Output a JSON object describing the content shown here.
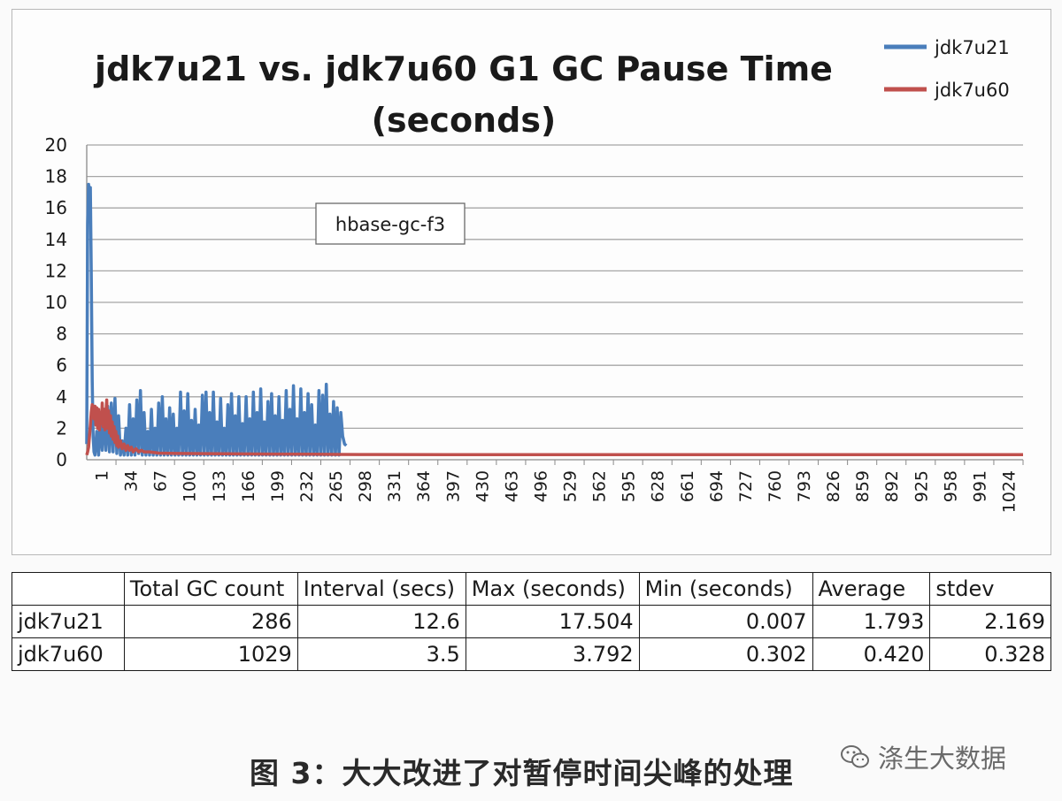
{
  "chart_data": {
    "type": "line",
    "title": "jdk7u21 vs. jdk7u60 G1 GC Pause Time (seconds)",
    "title_lines": [
      "jdk7u21 vs. jdk7u60 G1 GC Pause Time",
      "(seconds)"
    ],
    "annotation": "hbase-gc-f3",
    "ylim": [
      0,
      20
    ],
    "y_ticks": [
      "0",
      "2",
      "4",
      "6",
      "8",
      "10",
      "12",
      "14",
      "16",
      "18",
      "20"
    ],
    "x_tick_labels": [
      "1",
      "34",
      "67",
      "100",
      "133",
      "166",
      "199",
      "232",
      "265",
      "298",
      "331",
      "364",
      "397",
      "430",
      "463",
      "496",
      "529",
      "562",
      "595",
      "628",
      "661",
      "694",
      "727",
      "760",
      "793",
      "826",
      "859",
      "892",
      "925",
      "958",
      "991",
      "1024"
    ],
    "xlim": [
      1,
      1029
    ],
    "legend_position": "top-right",
    "grid": true,
    "series": [
      {
        "name": "jdk7u21",
        "color": "#4a7ebb",
        "points": [
          [
            1,
            1.0
          ],
          [
            2,
            15
          ],
          [
            3,
            17.5
          ],
          [
            4,
            16.5
          ],
          [
            5,
            17.3
          ],
          [
            6,
            12
          ],
          [
            7,
            5
          ],
          [
            8,
            1.5
          ],
          [
            9,
            0.5
          ],
          [
            10,
            0.3
          ],
          [
            12,
            1.8
          ],
          [
            14,
            0.3
          ],
          [
            16,
            2.5
          ],
          [
            18,
            0.6
          ],
          [
            20,
            3.2
          ],
          [
            22,
            0.6
          ],
          [
            24,
            3.4
          ],
          [
            26,
            0.5
          ],
          [
            28,
            3.6
          ],
          [
            30,
            0.5
          ],
          [
            32,
            3.9
          ],
          [
            34,
            0.4
          ],
          [
            36,
            2.8
          ],
          [
            38,
            0.3
          ],
          [
            40,
            1.2
          ],
          [
            42,
            0.3
          ],
          [
            44,
            2.0
          ],
          [
            46,
            0.3
          ],
          [
            48,
            3.5
          ],
          [
            50,
            0.3
          ],
          [
            52,
            2.6
          ],
          [
            54,
            0.3
          ],
          [
            56,
            3.8
          ],
          [
            58,
            0.4
          ],
          [
            60,
            4.4
          ],
          [
            62,
            0.3
          ],
          [
            64,
            3.0
          ],
          [
            66,
            0.3
          ],
          [
            68,
            1.8
          ],
          [
            70,
            0.3
          ],
          [
            72,
            3.2
          ],
          [
            74,
            0.3
          ],
          [
            76,
            2.0
          ],
          [
            78,
            0.3
          ],
          [
            80,
            3.6
          ],
          [
            82,
            0.3
          ],
          [
            84,
            4.0
          ],
          [
            86,
            0.3
          ],
          [
            88,
            2.6
          ],
          [
            90,
            0.3
          ],
          [
            92,
            3.3
          ],
          [
            94,
            0.3
          ],
          [
            96,
            2.9
          ],
          [
            98,
            0.3
          ],
          [
            100,
            2.0
          ],
          [
            102,
            0.3
          ],
          [
            104,
            4.3
          ],
          [
            106,
            0.3
          ],
          [
            108,
            3.1
          ],
          [
            110,
            0.3
          ],
          [
            112,
            4.2
          ],
          [
            114,
            0.3
          ],
          [
            116,
            2.5
          ],
          [
            118,
            0.3
          ],
          [
            120,
            3.2
          ],
          [
            122,
            0.3
          ],
          [
            124,
            2.2
          ],
          [
            126,
            0.3
          ],
          [
            128,
            4.1
          ],
          [
            130,
            0.3
          ],
          [
            132,
            4.3
          ],
          [
            134,
            0.3
          ],
          [
            136,
            3.0
          ],
          [
            138,
            0.3
          ],
          [
            140,
            4.3
          ],
          [
            142,
            0.3
          ],
          [
            144,
            2.4
          ],
          [
            146,
            0.3
          ],
          [
            148,
            3.9
          ],
          [
            150,
            0.3
          ],
          [
            152,
            2.0
          ],
          [
            154,
            0.3
          ],
          [
            156,
            3.5
          ],
          [
            158,
            0.3
          ],
          [
            160,
            4.2
          ],
          [
            162,
            0.3
          ],
          [
            164,
            2.8
          ],
          [
            166,
            0.3
          ],
          [
            168,
            4.0
          ],
          [
            170,
            0.3
          ],
          [
            172,
            2.3
          ],
          [
            174,
            0.3
          ],
          [
            176,
            4.0
          ],
          [
            178,
            0.3
          ],
          [
            180,
            2.6
          ],
          [
            182,
            0.3
          ],
          [
            184,
            4.3
          ],
          [
            186,
            0.3
          ],
          [
            188,
            3.0
          ],
          [
            190,
            0.3
          ],
          [
            192,
            4.5
          ],
          [
            194,
            0.3
          ],
          [
            196,
            2.4
          ],
          [
            198,
            0.3
          ],
          [
            200,
            3.7
          ],
          [
            202,
            0.3
          ],
          [
            204,
            4.2
          ],
          [
            206,
            0.3
          ],
          [
            208,
            2.8
          ],
          [
            210,
            0.3
          ],
          [
            212,
            4.0
          ],
          [
            214,
            0.3
          ],
          [
            216,
            2.5
          ],
          [
            218,
            0.3
          ],
          [
            220,
            4.4
          ],
          [
            222,
            0.3
          ],
          [
            224,
            3.2
          ],
          [
            226,
            0.3
          ],
          [
            228,
            4.7
          ],
          [
            230,
            0.3
          ],
          [
            232,
            2.6
          ],
          [
            234,
            0.3
          ],
          [
            236,
            4.5
          ],
          [
            238,
            0.3
          ],
          [
            240,
            3.0
          ],
          [
            242,
            0.3
          ],
          [
            244,
            4.2
          ],
          [
            246,
            0.3
          ],
          [
            248,
            3.5
          ],
          [
            250,
            0.3
          ],
          [
            252,
            2.2
          ],
          [
            254,
            0.3
          ],
          [
            256,
            4.4
          ],
          [
            258,
            0.3
          ],
          [
            260,
            4.1
          ],
          [
            262,
            0.3
          ],
          [
            264,
            4.8
          ],
          [
            266,
            0.3
          ],
          [
            268,
            2.9
          ],
          [
            270,
            0.3
          ],
          [
            272,
            3.7
          ],
          [
            274,
            0.3
          ],
          [
            276,
            3.3
          ],
          [
            278,
            0.3
          ],
          [
            280,
            3.0
          ],
          [
            282,
            1.5
          ],
          [
            284,
            1.0
          ],
          [
            286,
            0.9
          ]
        ]
      },
      {
        "name": "jdk7u60",
        "color": "#c0504d",
        "points": [
          [
            1,
            0.3
          ],
          [
            2,
            0.5
          ],
          [
            3,
            0.8
          ],
          [
            4,
            1.5
          ],
          [
            5,
            2.2
          ],
          [
            6,
            3.0
          ],
          [
            7,
            3.5
          ],
          [
            8,
            3.3
          ],
          [
            9,
            2.6
          ],
          [
            10,
            3.4
          ],
          [
            11,
            2.2
          ],
          [
            12,
            3.3
          ],
          [
            13,
            2.0
          ],
          [
            14,
            3.2
          ],
          [
            15,
            1.9
          ],
          [
            16,
            3.0
          ],
          [
            17,
            2.3
          ],
          [
            18,
            3.6
          ],
          [
            19,
            2.1
          ],
          [
            20,
            3.2
          ],
          [
            21,
            1.9
          ],
          [
            22,
            2.9
          ],
          [
            23,
            3.8
          ],
          [
            24,
            2.0
          ],
          [
            25,
            3.1
          ],
          [
            26,
            1.7
          ],
          [
            27,
            2.8
          ],
          [
            28,
            1.5
          ],
          [
            29,
            2.4
          ],
          [
            30,
            1.3
          ],
          [
            31,
            2.1
          ],
          [
            32,
            1.1
          ],
          [
            33,
            1.8
          ],
          [
            34,
            0.9
          ],
          [
            35,
            1.5
          ],
          [
            36,
            0.8
          ],
          [
            38,
            1.2
          ],
          [
            40,
            0.7
          ],
          [
            42,
            1.0
          ],
          [
            44,
            0.6
          ],
          [
            46,
            0.9
          ],
          [
            48,
            0.6
          ],
          [
            50,
            0.8
          ],
          [
            52,
            0.5
          ],
          [
            55,
            0.7
          ],
          [
            58,
            0.5
          ],
          [
            61,
            0.6
          ],
          [
            64,
            0.5
          ],
          [
            70,
            0.5
          ],
          [
            80,
            0.42
          ],
          [
            100,
            0.4
          ],
          [
            150,
            0.38
          ],
          [
            200,
            0.36
          ],
          [
            250,
            0.35
          ],
          [
            300,
            0.33
          ],
          [
            320,
            0.33
          ],
          [
            400,
            0.32
          ],
          [
            500,
            0.32
          ],
          [
            600,
            0.32
          ],
          [
            700,
            0.32
          ],
          [
            800,
            0.32
          ],
          [
            900,
            0.32
          ],
          [
            1000,
            0.32
          ],
          [
            1029,
            0.32
          ]
        ]
      }
    ]
  },
  "table": {
    "headers": [
      "",
      "Total GC count",
      "Interval (secs)",
      "Max (seconds)",
      "Min  (seconds)",
      "Average",
      "stdev"
    ],
    "rows": [
      [
        "jdk7u21",
        "286",
        "12.6",
        "17.504",
        "0.007",
        "1.793",
        "2.169"
      ],
      [
        "jdk7u60",
        "1029",
        "3.5",
        "3.792",
        "0.302",
        "0.420",
        "0.328"
      ]
    ]
  },
  "caption": "图 3：大大改进了对暂停时间尖峰的处理",
  "watermark": {
    "text": "涤生大数据",
    "icon": "wechat-icon"
  }
}
